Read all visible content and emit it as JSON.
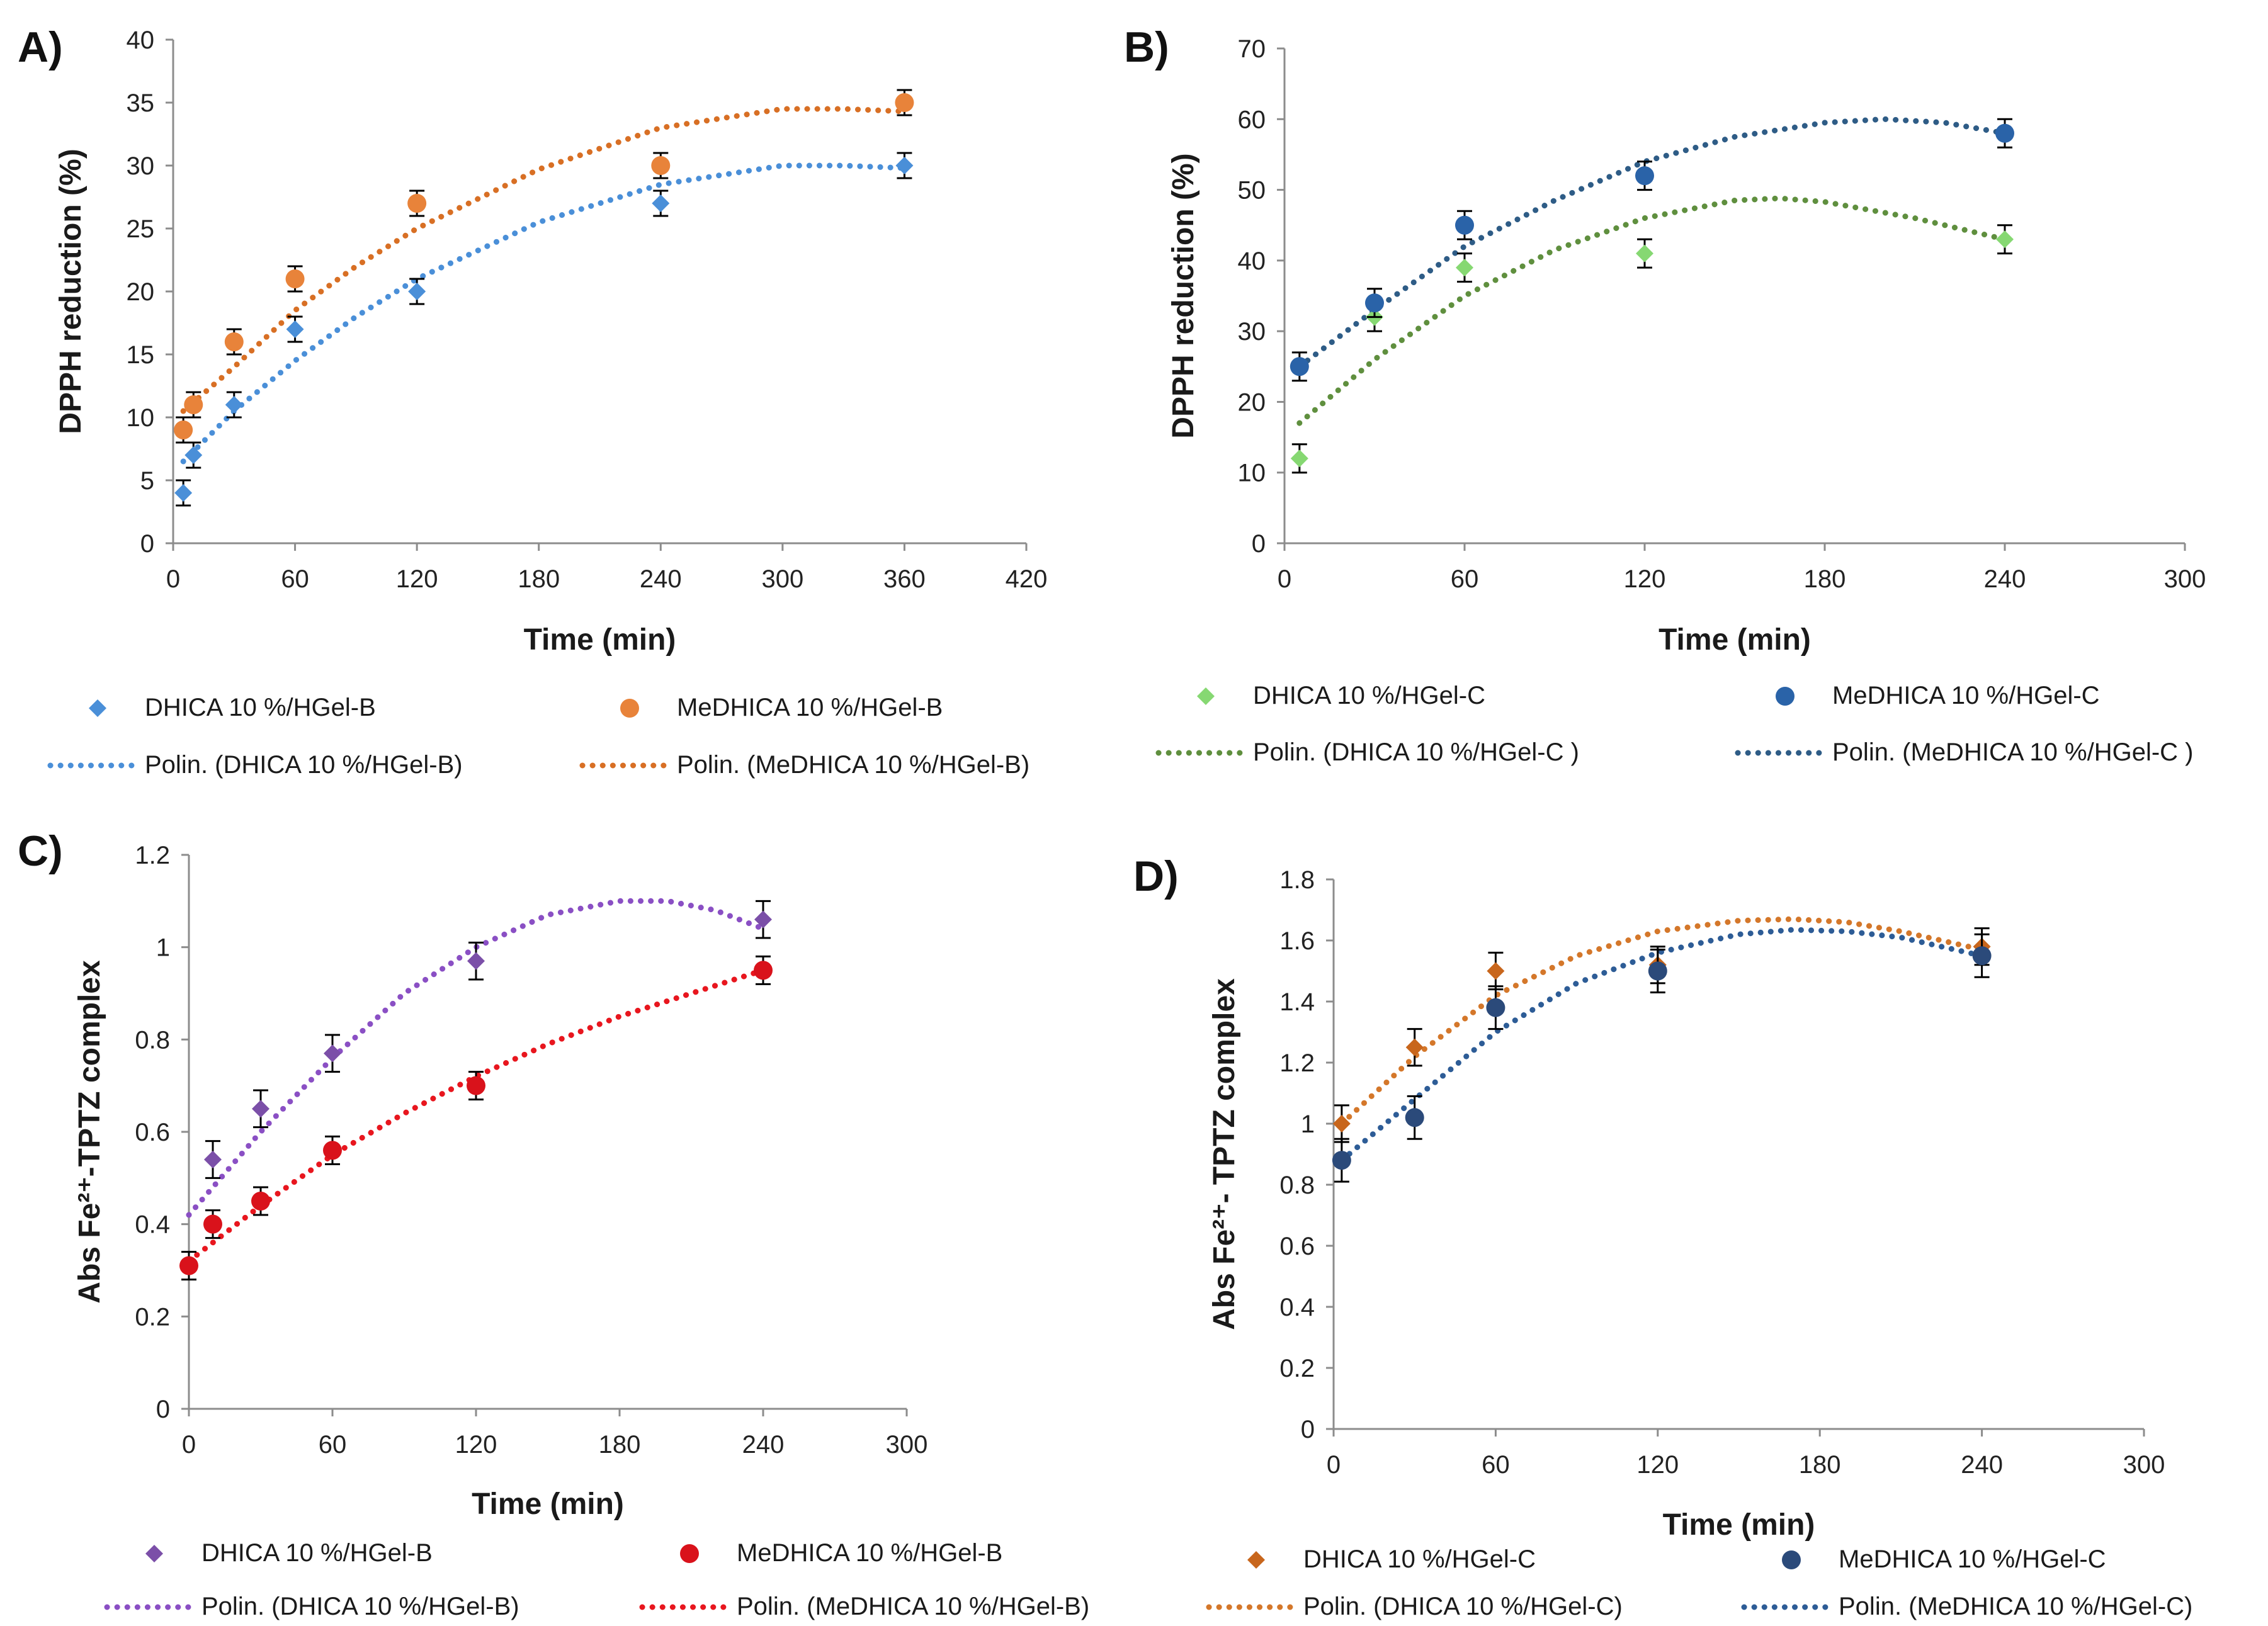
{
  "chart_data": [
    {
      "type": "scatter",
      "panel_label": "A)",
      "xlabel": "Time (min)",
      "ylabel": "DPPH reduction (%)",
      "xlim": [
        0,
        420
      ],
      "ylim": [
        0,
        40
      ],
      "xticks": [
        0,
        60,
        120,
        180,
        240,
        300,
        360,
        420
      ],
      "yticks": [
        0,
        5,
        10,
        15,
        20,
        25,
        30,
        35,
        40
      ],
      "series": [
        {
          "name": "DHICA 10 %/HGel-B",
          "marker": "diamond",
          "color": "#4a8fd8",
          "x": [
            5,
            10,
            30,
            60,
            120,
            240,
            360
          ],
          "y": [
            4,
            7,
            11,
            17,
            20,
            27,
            30
          ],
          "err": [
            1,
            1,
            1,
            1,
            1,
            1,
            1
          ]
        },
        {
          "name": "MeDHICA 10 %/HGel-B",
          "marker": "circle",
          "color": "#e8833a",
          "x": [
            5,
            10,
            30,
            60,
            120,
            240,
            360
          ],
          "y": [
            9,
            11,
            16,
            21,
            27,
            30,
            35
          ],
          "err": [
            1,
            1,
            1,
            1,
            1,
            1,
            1
          ]
        }
      ],
      "trendlines": [
        {
          "name": "Polin. (DHICA 10 %/HGel-B)",
          "color": "#4a8fd8",
          "x": [
            5,
            30,
            60,
            90,
            120,
            180,
            240,
            300,
            330,
            360
          ],
          "y": [
            6.5,
            10.5,
            14.5,
            18,
            21,
            25.5,
            28.5,
            30,
            30,
            29.8
          ]
        },
        {
          "name": "Polin. (MeDHICA 10 %/HGel-B)",
          "color": "#d86f24",
          "x": [
            5,
            30,
            60,
            90,
            120,
            180,
            240,
            300,
            330,
            360
          ],
          "y": [
            10.5,
            14,
            18.5,
            22,
            25,
            29.7,
            33,
            34.5,
            34.5,
            34.3
          ]
        }
      ]
    },
    {
      "type": "scatter",
      "panel_label": "B)",
      "xlabel": "Time (min)",
      "ylabel": "DPPH reduction (%)",
      "xlim": [
        0,
        300
      ],
      "ylim": [
        0,
        70
      ],
      "xticks": [
        0,
        60,
        120,
        180,
        240,
        300
      ],
      "yticks": [
        0,
        10,
        20,
        30,
        40,
        50,
        60,
        70
      ],
      "series": [
        {
          "name": "DHICA 10 %/HGel-C",
          "marker": "diamond",
          "color": "#86d872",
          "x": [
            5,
            30,
            60,
            120,
            240
          ],
          "y": [
            12,
            32,
            39,
            41,
            43
          ],
          "err": [
            2,
            2,
            2,
            2,
            2
          ]
        },
        {
          "name": "MeDHICA 10 %/HGel-C",
          "marker": "circle",
          "color": "#2a63a8",
          "x": [
            5,
            30,
            60,
            120,
            240
          ],
          "y": [
            25,
            34,
            45,
            52,
            58
          ],
          "err": [
            2,
            2,
            2,
            2,
            2
          ]
        }
      ],
      "trendlines": [
        {
          "name": "Polin. (DHICA 10 %/HGel-C )",
          "color": "#5f8f3e",
          "x": [
            5,
            30,
            60,
            90,
            120,
            150,
            165,
            180,
            210,
            240
          ],
          "y": [
            17,
            26,
            35,
            41.5,
            46,
            48.5,
            48.8,
            48.3,
            46,
            43
          ]
        },
        {
          "name": "Polin. (MeDHICA 10 %/HGel-C )",
          "color": "#2e5c86",
          "x": [
            5,
            30,
            60,
            90,
            120,
            150,
            180,
            200,
            220,
            240
          ],
          "y": [
            25,
            33,
            42,
            48.5,
            54,
            57.5,
            59.5,
            60,
            59.5,
            58
          ]
        }
      ]
    },
    {
      "type": "scatter",
      "panel_label": "C)",
      "xlabel": "Time (min)",
      "ylabel": "Abs Fe²⁺-TPTZ complex",
      "xlim": [
        0,
        300
      ],
      "ylim": [
        0,
        1.2
      ],
      "xticks": [
        0,
        60,
        120,
        180,
        240,
        300
      ],
      "yticks": [
        0,
        0.2,
        0.4,
        0.6,
        0.8,
        1,
        1.2
      ],
      "series": [
        {
          "name": "DHICA 10 %/HGel-B",
          "marker": "diamond",
          "color": "#7b4fa8",
          "x": [
            10,
            30,
            60,
            120,
            240
          ],
          "y": [
            0.54,
            0.65,
            0.77,
            0.97,
            1.06
          ],
          "err": [
            0.04,
            0.04,
            0.04,
            0.04,
            0.04
          ]
        },
        {
          "name": "MeDHICA 10 %/HGel-B",
          "marker": "circle",
          "color": "#d9121b",
          "x": [
            0,
            10,
            30,
            60,
            120,
            240
          ],
          "y": [
            0.31,
            0.4,
            0.45,
            0.56,
            0.7,
            0.95
          ],
          "err": [
            0.03,
            0.03,
            0.03,
            0.03,
            0.03,
            0.03
          ]
        }
      ],
      "trendlines": [
        {
          "name": "Polin. (DHICA 10 %/HGel-B)",
          "color": "#8a4fc4",
          "x": [
            0,
            10,
            30,
            60,
            90,
            120,
            150,
            180,
            200,
            220,
            240
          ],
          "y": [
            0.42,
            0.48,
            0.6,
            0.76,
            0.9,
            1.0,
            1.07,
            1.1,
            1.1,
            1.08,
            1.04
          ]
        },
        {
          "name": "Polin. (MeDHICA 10 %/HGel-B)",
          "color": "#e8161e",
          "x": [
            0,
            10,
            30,
            60,
            90,
            120,
            150,
            180,
            210,
            240
          ],
          "y": [
            0.32,
            0.36,
            0.44,
            0.55,
            0.64,
            0.72,
            0.79,
            0.85,
            0.9,
            0.95
          ]
        }
      ]
    },
    {
      "type": "scatter",
      "panel_label": "D)",
      "xlabel": "Time (min)",
      "ylabel": "Abs Fe²⁺- TPTZ complex",
      "xlim": [
        0,
        300
      ],
      "ylim": [
        0,
        1.8
      ],
      "xticks": [
        0,
        60,
        120,
        180,
        240,
        300
      ],
      "yticks": [
        0,
        0.2,
        0.4,
        0.6,
        0.8,
        1,
        1.2,
        1.4,
        1.6,
        1.8
      ],
      "series": [
        {
          "name": "DHICA 10 %/HGel-C",
          "marker": "diamond",
          "color": "#c8661c",
          "x": [
            3,
            30,
            60,
            120,
            240
          ],
          "y": [
            1.0,
            1.25,
            1.5,
            1.52,
            1.58
          ],
          "err": [
            0.06,
            0.06,
            0.06,
            0.06,
            0.06
          ]
        },
        {
          "name": "MeDHICA 10 %/HGel-C",
          "marker": "circle",
          "color": "#2b4a7a",
          "x": [
            3,
            30,
            60,
            120,
            240
          ],
          "y": [
            0.88,
            1.02,
            1.38,
            1.5,
            1.55
          ],
          "err": [
            0.07,
            0.07,
            0.07,
            0.07,
            0.07
          ]
        }
      ],
      "trendlines": [
        {
          "name": "Polin. (DHICA 10 %/HGel-C)",
          "color": "#d4772a",
          "x": [
            3,
            30,
            60,
            90,
            120,
            150,
            170,
            190,
            210,
            240
          ],
          "y": [
            1.0,
            1.22,
            1.42,
            1.55,
            1.63,
            1.665,
            1.67,
            1.66,
            1.63,
            1.57
          ]
        },
        {
          "name": "Polin. (MeDHICA 10 %/HGel-C)",
          "color": "#2d5c96",
          "x": [
            3,
            30,
            60,
            90,
            120,
            150,
            170,
            190,
            210,
            240
          ],
          "y": [
            0.88,
            1.08,
            1.3,
            1.46,
            1.56,
            1.62,
            1.635,
            1.63,
            1.61,
            1.55
          ]
        }
      ]
    }
  ]
}
